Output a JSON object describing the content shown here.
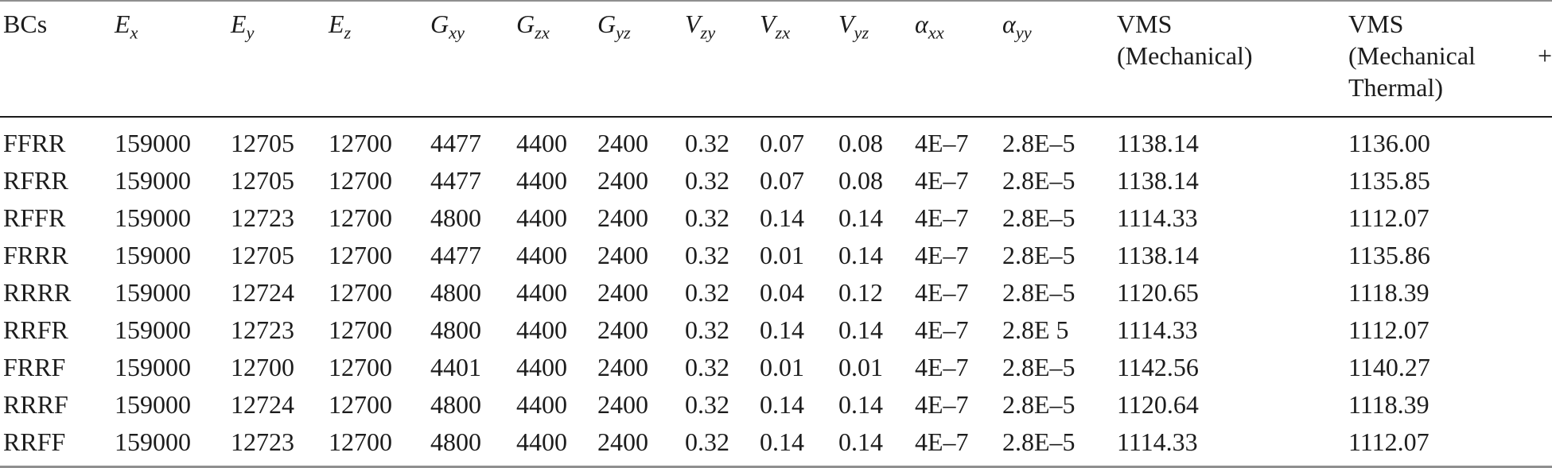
{
  "colors": {
    "text": "#1c1c1c",
    "rule_light": "#8f8f8f",
    "rule_heavy": "#1b1b1b",
    "background": "#ffffff"
  },
  "chart_data": {
    "type": "table",
    "columns": [
      {
        "main": "BCs",
        "sub": ""
      },
      {
        "main": "E",
        "sub": "x"
      },
      {
        "main": "E",
        "sub": "y"
      },
      {
        "main": "E",
        "sub": "z"
      },
      {
        "main": "G",
        "sub": "xy"
      },
      {
        "main": "G",
        "sub": "zx"
      },
      {
        "main": "G",
        "sub": "yz"
      },
      {
        "main": "V",
        "sub": "zy"
      },
      {
        "main": "V",
        "sub": "zx"
      },
      {
        "main": "V",
        "sub": "yz"
      },
      {
        "main": "α",
        "sub": "xx"
      },
      {
        "main": "α",
        "sub": "yy"
      },
      {
        "line1": "VMS",
        "line2": "(Mechanical)"
      },
      {
        "line1": "VMS",
        "line2_left": "(Mechanical",
        "line2_right": "+",
        "line3": "Thermal)"
      }
    ],
    "rows": [
      {
        "bc": "FFRR",
        "values": [
          "159000",
          "12705",
          "12700",
          "4477",
          "4400",
          "2400",
          "0.32",
          "0.07",
          "0.08",
          "4E–7",
          "2.8E–5",
          "1138.14",
          "1136.00"
        ]
      },
      {
        "bc": "RFRR",
        "values": [
          "159000",
          "12705",
          "12700",
          "4477",
          "4400",
          "2400",
          "0.32",
          "0.07",
          "0.08",
          "4E–7",
          "2.8E–5",
          "1138.14",
          "1135.85"
        ]
      },
      {
        "bc": "RFFR",
        "values": [
          "159000",
          "12723",
          "12700",
          "4800",
          "4400",
          "2400",
          "0.32",
          "0.14",
          "0.14",
          "4E–7",
          "2.8E–5",
          "1114.33",
          "1112.07"
        ]
      },
      {
        "bc": "FRRR",
        "values": [
          "159000",
          "12705",
          "12700",
          "4477",
          "4400",
          "2400",
          "0.32",
          "0.01",
          "0.14",
          "4E–7",
          "2.8E–5",
          "1138.14",
          "1135.86"
        ]
      },
      {
        "bc": "RRRR",
        "values": [
          "159000",
          "12724",
          "12700",
          "4800",
          "4400",
          "2400",
          "0.32",
          "0.04",
          "0.12",
          "4E–7",
          "2.8E–5",
          "1120.65",
          "1118.39"
        ]
      },
      {
        "bc": "RRFR",
        "values": [
          "159000",
          "12723",
          "12700",
          "4800",
          "4400",
          "2400",
          "0.32",
          "0.14",
          "0.14",
          "4E–7",
          "2.8E 5",
          "1114.33",
          "1112.07"
        ]
      },
      {
        "bc": "FRRF",
        "values": [
          "159000",
          "12700",
          "12700",
          "4401",
          "4400",
          "2400",
          "0.32",
          "0.01",
          "0.01",
          "4E–7",
          "2.8E–5",
          "1142.56",
          "1140.27"
        ]
      },
      {
        "bc": "RRRF",
        "values": [
          "159000",
          "12724",
          "12700",
          "4800",
          "4400",
          "2400",
          "0.32",
          "0.14",
          "0.14",
          "4E–7",
          "2.8E–5",
          "1120.64",
          "1118.39"
        ]
      },
      {
        "bc": "RRFF",
        "values": [
          "159000",
          "12723",
          "12700",
          "4800",
          "4400",
          "2400",
          "0.32",
          "0.14",
          "0.14",
          "4E–7",
          "2.8E–5",
          "1114.33",
          "1112.07"
        ]
      }
    ]
  }
}
